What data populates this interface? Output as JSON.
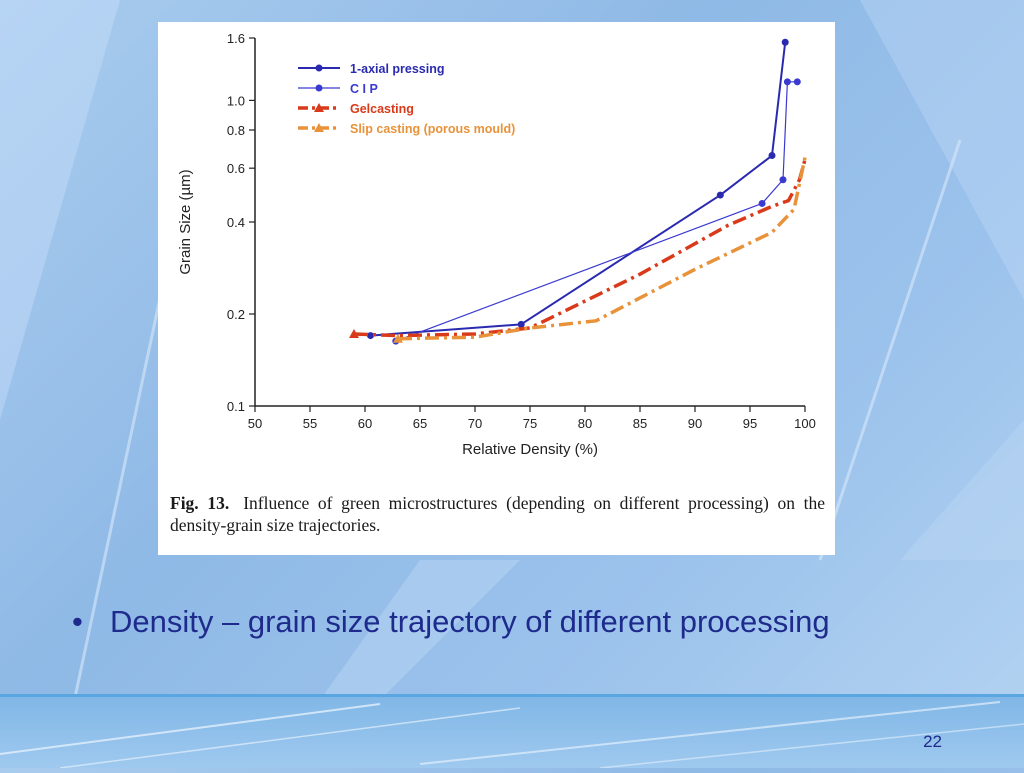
{
  "slide": {
    "bullet_text": "Density – grain size trajectory of different processing",
    "page_number": "22",
    "accent_color": "#1e2a8c"
  },
  "caption": {
    "label": "Fig. 13.",
    "text": "Influence of green microstructures (depending on different processing) on the density-grain size trajectories."
  },
  "chart_data": {
    "type": "line",
    "xlabel": "Relative Density (%)",
    "ylabel": "Grain Size (µm)",
    "x_ticks": [
      50,
      55,
      60,
      65,
      70,
      75,
      80,
      85,
      90,
      95,
      100
    ],
    "y_ticks": [
      0.1,
      0.2,
      0.4,
      0.6,
      0.8,
      1.0,
      1.6
    ],
    "y_tick_labels": [
      "0.1",
      "0.2",
      "0.4",
      "0.6",
      "0.8",
      "1.0",
      "1.6"
    ],
    "xlim": [
      50,
      100
    ],
    "ylim": [
      0.1,
      1.6
    ],
    "y_scale": "log",
    "legend_position": "top-left",
    "series": [
      {
        "name": "1-axial pressing",
        "color": "#2a2ab0",
        "style": "solid",
        "marker": "circle",
        "x": [
          60.5,
          74.2,
          92.3,
          97.0,
          98.2
        ],
        "y": [
          0.17,
          0.185,
          0.49,
          0.66,
          1.55
        ]
      },
      {
        "name": "C I P",
        "color": "#3a3ad0",
        "style": "thin",
        "marker": "circle",
        "x": [
          62.8,
          96.1,
          98.0,
          98.4,
          99.3
        ],
        "y": [
          0.163,
          0.46,
          0.55,
          1.15,
          1.15
        ]
      },
      {
        "name": "Gelcasting",
        "color": "#d83a1a",
        "style": "dashdot",
        "marker": "triangle",
        "x": [
          59.0,
          63.0,
          70.0,
          75.0,
          85.0,
          93.0,
          97.0,
          98.5,
          99.5,
          100.0
        ],
        "y": [
          0.172,
          0.17,
          0.172,
          0.18,
          0.27,
          0.39,
          0.45,
          0.47,
          0.55,
          0.64
        ]
      },
      {
        "name": "Slip casting (porous mould)",
        "color": "#e8923a",
        "style": "dashdot",
        "marker": "triangle",
        "x": [
          63.0,
          70.0,
          75.0,
          81.0,
          90.0,
          97.0,
          99.0,
          100.0
        ],
        "y": [
          0.166,
          0.168,
          0.18,
          0.19,
          0.28,
          0.37,
          0.44,
          0.65
        ]
      }
    ]
  }
}
